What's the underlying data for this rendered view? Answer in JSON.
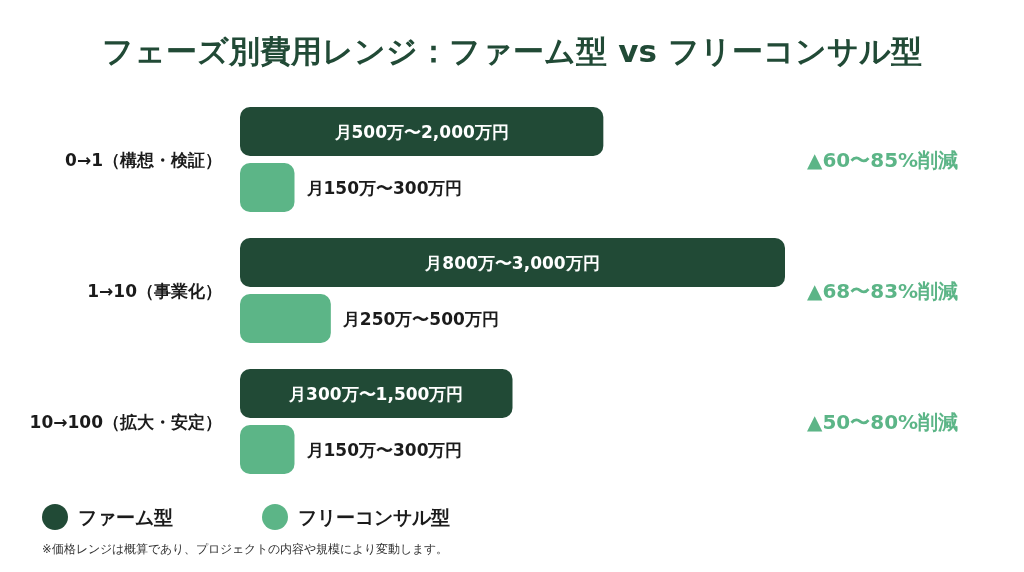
{
  "chart_data": {
    "type": "bar",
    "orientation": "horizontal",
    "title": "フェーズ別費用レンジ：ファーム型 vs フリーコンサル型",
    "categories": [
      "0→1（構想・検証）",
      "1→10（事業化）",
      "10→100（拡大・安定）"
    ],
    "series": [
      {
        "name": "ファーム型",
        "color": "#214a36",
        "values": [
          2000,
          3000,
          1500
        ],
        "value_labels": [
          "月500万〜2,000万円",
          "月800万〜3,000万円",
          "月300万〜1,500万円"
        ]
      },
      {
        "name": "フリーコンサル型",
        "color": "#5cb587",
        "values": [
          300,
          500,
          300
        ],
        "value_labels": [
          "月150万〜300万円",
          "月250万〜500万円",
          "月150万〜300万円"
        ]
      }
    ],
    "legend": "bottom left",
    "annotations": [
      "▲60〜85%削減",
      "▲68〜83%削減",
      "▲50〜80%削減",
      "※価格レンジは概算であり、プロジェクトの内容や規模により変動します。"
    ]
  }
}
